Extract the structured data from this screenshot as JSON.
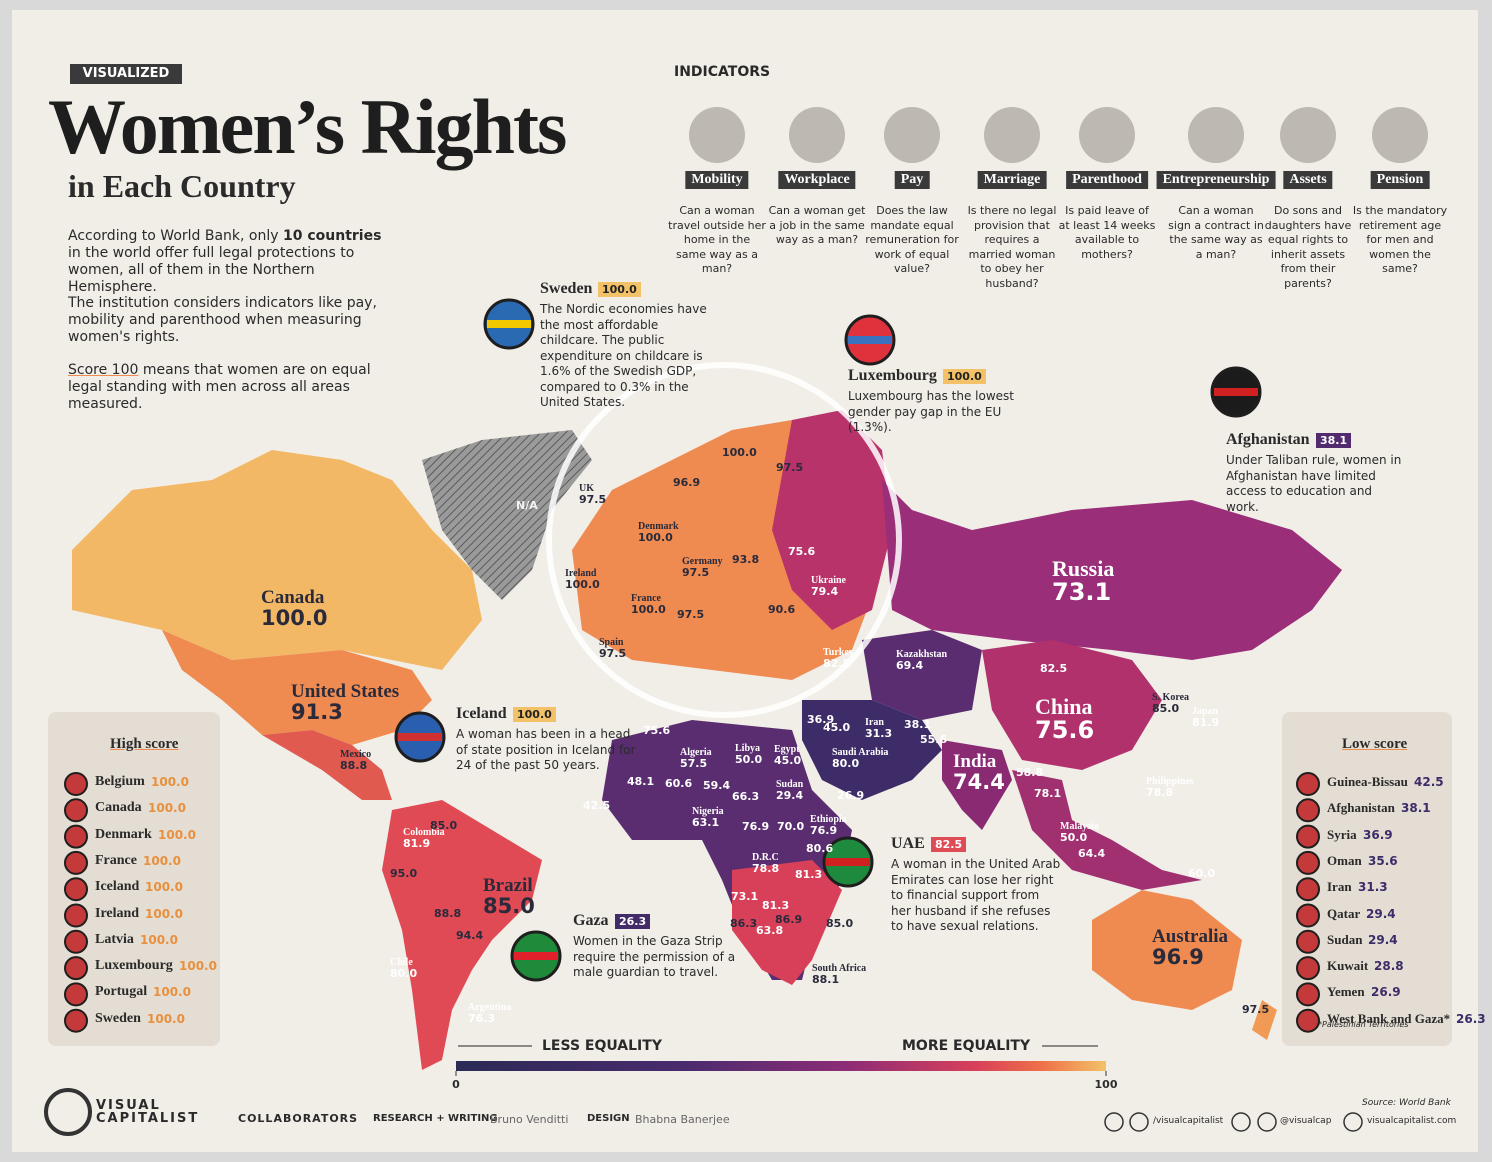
{
  "header": {
    "tag": "VISUALIZED",
    "title": "Women’s Rights",
    "subtitle": "in Each Country",
    "intro_1": [
      "According to World Bank, only ",
      "10 countries",
      " in the world offer full legal protections to women, all of them in the Northern Hemisphere."
    ],
    "intro_2": "The institution considers indicators like pay, mobility and parenthood when measuring women's rights.",
    "intro_3": [
      "Score 100",
      " means that women are on equal legal standing with men across all areas measured."
    ]
  },
  "indicators": {
    "title": "INDICATORS",
    "items": [
      {
        "name": "Mobility",
        "question": "Can a woman travel outside her home in the same way as a man?"
      },
      {
        "name": "Workplace",
        "question": "Can a woman get a job in the same way as a man?"
      },
      {
        "name": "Pay",
        "question": "Does the law mandate equal remuneration for work of equal value?"
      },
      {
        "name": "Marriage",
        "question": "Is there no legal provision that requires a married woman to obey her husband?"
      },
      {
        "name": "Parenthood",
        "question": "Is paid leave of at least 14 weeks available to mothers?"
      },
      {
        "name": "Entrepreneurship",
        "question": "Can a woman sign a contract in the same way as a man?"
      },
      {
        "name": "Assets",
        "question": "Do sons and daughters have equal rights to inherit assets from their parents?"
      },
      {
        "name": "Pension",
        "question": "Is the mandatory retirement age for men and women the same?"
      }
    ]
  },
  "callouts": [
    {
      "country": "Sweden",
      "score": "100.0",
      "text": "The Nordic economies have the most affordable childcare. The public expenditure on childcare is 1.6% of the Swedish GDP, compared to 0.3% in the United States."
    },
    {
      "country": "Luxembourg",
      "score": "100.0",
      "text": "Luxembourg has the lowest gender pay gap in the EU (1.3%)."
    },
    {
      "country": "Afghanistan",
      "score": "38.1",
      "text": "Under Taliban rule, women in Afghanistan have limited access to education and work."
    },
    {
      "country": "Iceland",
      "score": "100.0",
      "text": "A woman has been in a head of state position in Iceland for 24 of the past 50 years."
    },
    {
      "country": "UAE",
      "score": "82.5",
      "text": "A woman in the United Arab Emirates can lose her right to financial support from her husband if she refuses to have sexual relations."
    },
    {
      "country": "Gaza",
      "score": "26.3",
      "text": "Women in the Gaza Strip require the permission of a male guardian to travel."
    }
  ],
  "map_labels": [
    {
      "score": "N/A"
    },
    {
      "name": "Canada",
      "score": "100.0"
    },
    {
      "name": "United States",
      "score": "91.3"
    },
    {
      "name": "Mexico",
      "score": "88.8"
    },
    {
      "name": "Colombia",
      "score": "81.9"
    },
    {
      "score": "85.0"
    },
    {
      "score": "95.0"
    },
    {
      "name": "Brazil",
      "score": "85.0"
    },
    {
      "score": "88.8"
    },
    {
      "score": "94.4"
    },
    {
      "name": "Chile",
      "score": "80.0"
    },
    {
      "name": "Argentina",
      "score": "76.3"
    },
    {
      "score": "42.5"
    },
    {
      "name": "UK",
      "score": "97.5"
    },
    {
      "score": "96.9"
    },
    {
      "score": "100.0"
    },
    {
      "score": "97.5"
    },
    {
      "name": "Denmark",
      "score": "100.0"
    },
    {
      "name": "Ireland",
      "score": "100.0"
    },
    {
      "name": "Germany",
      "score": "97.5"
    },
    {
      "score": "93.8"
    },
    {
      "score": "75.6"
    },
    {
      "name": "Ukraine",
      "score": "79.4"
    },
    {
      "name": "France",
      "score": "100.0"
    },
    {
      "score": "97.5"
    },
    {
      "score": "90.6"
    },
    {
      "name": "Spain",
      "score": "97.5"
    },
    {
      "name": "Turkey",
      "score": "82.5"
    },
    {
      "name": "Kazakhstan",
      "score": "69.4"
    },
    {
      "name": "Russia",
      "score": "73.1"
    },
    {
      "score": "82.5"
    },
    {
      "name": "China",
      "score": "75.6"
    },
    {
      "name": "S. Korea",
      "score": "85.0"
    },
    {
      "name": "Japan",
      "score": "81.9"
    },
    {
      "name": "Iran",
      "score": "31.3"
    },
    {
      "score": "38.1"
    },
    {
      "score": "55.6"
    },
    {
      "score": "45.0"
    },
    {
      "score": "36.9"
    },
    {
      "name": "India",
      "score": "74.4"
    },
    {
      "name": "Saudi Arabia",
      "score": "80.0"
    },
    {
      "name": "Algeria",
      "score": "57.5"
    },
    {
      "name": "Libya",
      "score": "50.0"
    },
    {
      "name": "Egypt",
      "score": "45.0"
    },
    {
      "score": "48.1"
    },
    {
      "score": "60.6"
    },
    {
      "score": "59.4"
    },
    {
      "score": "66.3"
    },
    {
      "name": "Sudan",
      "score": "29.4"
    },
    {
      "name": "Nigeria",
      "score": "63.1"
    },
    {
      "name": "Ethiopia",
      "score": "76.9"
    },
    {
      "score": "76.9"
    },
    {
      "score": "70.0"
    },
    {
      "name": "D.R.C",
      "score": "78.8"
    },
    {
      "score": "80.6"
    },
    {
      "score": "81.3"
    },
    {
      "score": "73.1"
    },
    {
      "score": "81.3"
    },
    {
      "score": "86.3"
    },
    {
      "score": "86.9"
    },
    {
      "score": "63.8"
    },
    {
      "score": "85.0"
    },
    {
      "name": "South Africa",
      "score": "88.1"
    },
    {
      "score": "58.8"
    },
    {
      "score": "78.1"
    },
    {
      "name": "Philippines",
      "score": "78.8"
    },
    {
      "name": "Malaysia",
      "score": "50.0"
    },
    {
      "score": "64.4"
    },
    {
      "score": "60.0"
    },
    {
      "name": "Australia",
      "score": "96.9"
    },
    {
      "score": "97.5"
    },
    {
      "score": "26.9"
    },
    {
      "score": "75.6"
    }
  ],
  "high_score": {
    "title": "High score",
    "rows": [
      {
        "country": "Belgium",
        "score": "100.0"
      },
      {
        "country": "Canada",
        "score": "100.0"
      },
      {
        "country": "Denmark",
        "score": "100.0"
      },
      {
        "country": "France",
        "score": "100.0"
      },
      {
        "country": "Iceland",
        "score": "100.0"
      },
      {
        "country": "Ireland",
        "score": "100.0"
      },
      {
        "country": "Latvia",
        "score": "100.0"
      },
      {
        "country": "Luxembourg",
        "score": "100.0"
      },
      {
        "country": "Portugal",
        "score": "100.0"
      },
      {
        "country": "Sweden",
        "score": "100.0"
      }
    ]
  },
  "low_score": {
    "title": "Low score",
    "rows": [
      {
        "country": "Guinea-Bissau",
        "score": "42.5"
      },
      {
        "country": "Afghanistan",
        "score": "38.1"
      },
      {
        "country": "Syria",
        "score": "36.9"
      },
      {
        "country": "Oman",
        "score": "35.6"
      },
      {
        "country": "Iran",
        "score": "31.3"
      },
      {
        "country": "Qatar",
        "score": "29.4"
      },
      {
        "country": "Sudan",
        "score": "29.4"
      },
      {
        "country": "Kuwait",
        "score": "28.8"
      },
      {
        "country": "Yemen",
        "score": "26.9"
      },
      {
        "country": "West Bank and Gaza*",
        "score": "26.3"
      }
    ],
    "note": "*Palestinian Territories"
  },
  "legend": {
    "left": "LESS EQUALITY",
    "right": "MORE EQUALITY",
    "min": 0,
    "max": 100
  },
  "footer": {
    "brand": [
      "VISUAL",
      "CAPITALIST"
    ],
    "collaborators": "COLLABORATORS",
    "research_label": "RESEARCH + WRITING",
    "research_name": "Bruno Venditti",
    "design_label": "DESIGN",
    "design_name": "Bhabna Banerjee",
    "source": "Source: World Bank",
    "social_1": "/visualcapitalist",
    "social_2": "@visualcap",
    "site": "visualcapitalist.com"
  }
}
